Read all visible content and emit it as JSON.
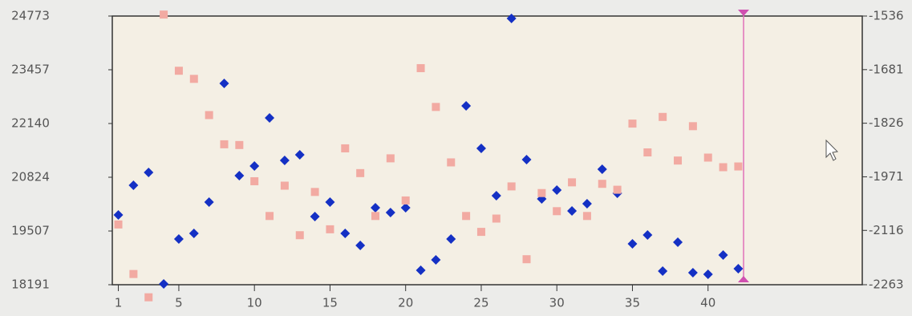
{
  "chart_data": {
    "type": "scatter",
    "x": [
      1,
      2,
      3,
      4,
      5,
      6,
      7,
      8,
      9,
      10,
      11,
      12,
      13,
      14,
      15,
      16,
      17,
      18,
      19,
      20,
      21,
      22,
      23,
      24,
      25,
      26,
      27,
      28,
      29,
      30,
      31,
      32,
      33,
      34,
      35,
      36,
      37,
      38,
      39,
      40,
      41,
      42
    ],
    "xlim": [
      0.6,
      50.2
    ],
    "xticks": [
      1,
      5,
      10,
      15,
      20,
      25,
      30,
      35,
      40
    ],
    "ylim": [
      18191,
      24773
    ],
    "yticks": [
      18191,
      19507,
      20824,
      22140,
      23457,
      24773
    ],
    "y2lim": [
      -2263,
      -1536
    ],
    "y2ticks": [
      -2263,
      -2116,
      -1971,
      -1826,
      -1681,
      -1536
    ],
    "series": [
      {
        "color": "#1430c4",
        "values": [
          19901,
          20628,
          20942,
          18211,
          19311,
          19449,
          20215,
          23123,
          20863,
          21099,
          22278,
          21237,
          21374,
          19861,
          20215,
          19449,
          19154,
          20077,
          19960,
          20077,
          18545,
          18800,
          19311,
          22573,
          21532,
          20372,
          24715,
          21256,
          20294,
          20510,
          19999,
          20176,
          21021,
          20431,
          19193,
          19409,
          18525,
          19232,
          18486,
          18446,
          18918,
          18584
        ]
      },
      {
        "color": "#f2aaa2",
        "axis": "y2",
        "values": [
          -2100,
          -2234,
          -2297,
          -1532,
          -1684,
          -1706,
          -1804,
          -1883,
          -1885,
          -1983,
          -2077,
          -1995,
          -2129,
          -2012,
          -2113,
          -1894,
          -1961,
          -2077,
          -1921,
          -2035,
          -1677,
          -1782,
          -1932,
          -2077,
          -2120,
          -2084,
          -1997,
          -2194,
          -2015,
          -2064,
          -1986,
          -2077,
          -1990,
          -2006,
          -1827,
          -1905,
          -1809,
          -1927,
          -1834,
          -1919,
          -1945,
          -1943
        ]
      }
    ]
  }
}
